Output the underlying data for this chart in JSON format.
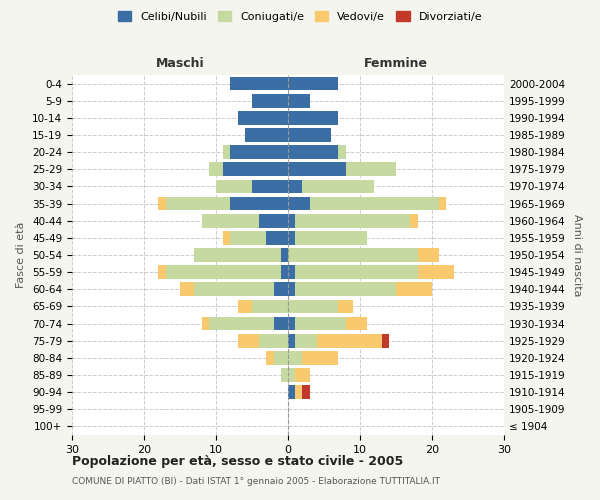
{
  "age_groups": [
    "100+",
    "95-99",
    "90-94",
    "85-89",
    "80-84",
    "75-79",
    "70-74",
    "65-69",
    "60-64",
    "55-59",
    "50-54",
    "45-49",
    "40-44",
    "35-39",
    "30-34",
    "25-29",
    "20-24",
    "15-19",
    "10-14",
    "5-9",
    "0-4"
  ],
  "birth_years": [
    "≤ 1904",
    "1905-1909",
    "1910-1914",
    "1915-1919",
    "1920-1924",
    "1925-1929",
    "1930-1934",
    "1935-1939",
    "1940-1944",
    "1945-1949",
    "1950-1954",
    "1955-1959",
    "1960-1964",
    "1965-1969",
    "1970-1974",
    "1975-1979",
    "1980-1984",
    "1985-1989",
    "1990-1994",
    "1995-1999",
    "2000-2004"
  ],
  "males": {
    "celibi": [
      0,
      0,
      0,
      0,
      0,
      0,
      2,
      0,
      2,
      1,
      1,
      3,
      4,
      8,
      5,
      9,
      8,
      6,
      7,
      5,
      8
    ],
    "coniugati": [
      0,
      0,
      0,
      1,
      2,
      4,
      9,
      5,
      11,
      16,
      12,
      5,
      8,
      9,
      5,
      2,
      1,
      0,
      0,
      0,
      0
    ],
    "vedovi": [
      0,
      0,
      0,
      0,
      1,
      3,
      1,
      2,
      2,
      1,
      0,
      1,
      0,
      1,
      0,
      0,
      0,
      0,
      0,
      0,
      0
    ],
    "divorziati": [
      0,
      0,
      0,
      0,
      0,
      0,
      0,
      0,
      0,
      0,
      0,
      0,
      0,
      0,
      0,
      0,
      0,
      0,
      0,
      0,
      0
    ]
  },
  "females": {
    "nubili": [
      0,
      0,
      1,
      0,
      0,
      1,
      1,
      0,
      1,
      1,
      0,
      1,
      1,
      3,
      2,
      8,
      7,
      6,
      7,
      3,
      7
    ],
    "coniugate": [
      0,
      0,
      0,
      1,
      2,
      3,
      7,
      7,
      14,
      17,
      18,
      10,
      16,
      18,
      10,
      7,
      1,
      0,
      0,
      0,
      0
    ],
    "vedove": [
      0,
      0,
      1,
      2,
      5,
      9,
      3,
      2,
      5,
      5,
      3,
      0,
      1,
      1,
      0,
      0,
      0,
      0,
      0,
      0,
      0
    ],
    "divorziate": [
      0,
      0,
      1,
      0,
      0,
      1,
      0,
      0,
      0,
      0,
      0,
      0,
      0,
      0,
      0,
      0,
      0,
      0,
      0,
      0,
      0
    ]
  },
  "colors": {
    "celibi": "#3a6ea5",
    "coniugati": "#c5d9a0",
    "vedovi": "#f9c96e",
    "divorziati": "#c0392b"
  },
  "legend_labels": [
    "Celibi/Nubili",
    "Coniugati/e",
    "Vedovi/e",
    "Divorziati/e"
  ],
  "title_main": "Popolazione per età, sesso e stato civile - 2005",
  "title_sub": "COMUNE DI PIATTO (BI) - Dati ISTAT 1° gennaio 2005 - Elaborazione TUTTITALIA.IT",
  "xlabel_left": "Maschi",
  "xlabel_right": "Femmine",
  "ylabel_left": "Fasce di età",
  "ylabel_right": "Anni di nascita",
  "xlim": 30,
  "background_color": "#f5f5f0",
  "plot_background": "#ffffff"
}
